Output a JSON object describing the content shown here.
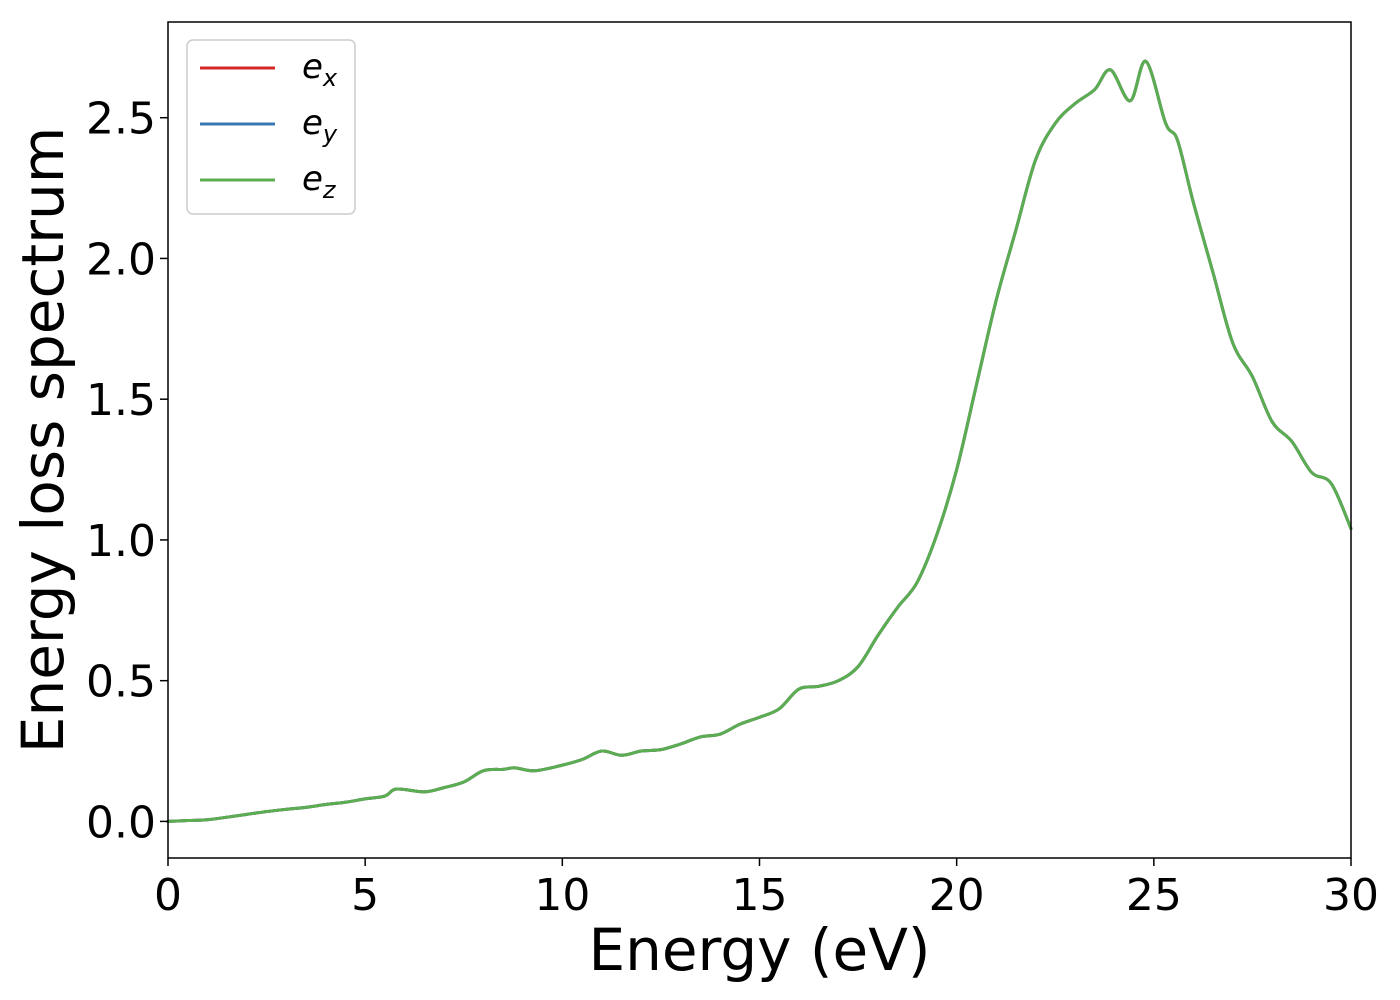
{
  "chart_data": {
    "type": "line",
    "xlabel": "Energy (eV)",
    "ylabel": "Energy loss spectrum",
    "xlim": [
      0,
      30
    ],
    "ylim": [
      -0.13,
      2.84
    ],
    "x_ticks": [
      0,
      5,
      10,
      15,
      20,
      25,
      30
    ],
    "x_tick_labels": [
      "0",
      "5",
      "10",
      "15",
      "20",
      "25",
      "30"
    ],
    "y_ticks": [
      0.0,
      0.5,
      1.0,
      1.5,
      2.0,
      2.5
    ],
    "y_tick_labels": [
      "0.0",
      "0.5",
      "1.0",
      "1.5",
      "2.0",
      "2.5"
    ],
    "grid": false,
    "legend": {
      "placement": "top-left",
      "entries": [
        {
          "base": "e",
          "sub": "x",
          "color": "#d62728"
        },
        {
          "base": "e",
          "sub": "y",
          "color": "#3a78b4"
        },
        {
          "base": "e",
          "sub": "z",
          "color": "#5aad50"
        }
      ]
    },
    "x": [
      0,
      0.5,
      1,
      1.5,
      2,
      2.5,
      3,
      3.5,
      4,
      4.5,
      5,
      5.5,
      5.8,
      6.5,
      7,
      7.5,
      8,
      8.5,
      8.8,
      9.3,
      10,
      10.5,
      11,
      11.5,
      12,
      12.5,
      13,
      13.5,
      14,
      14.5,
      15,
      15.5,
      16,
      16.5,
      17,
      17.5,
      18,
      18.5,
      19,
      19.5,
      20,
      20.5,
      21,
      21.5,
      22,
      22.5,
      23,
      23.5,
      23.9,
      24.4,
      24.8,
      25.3,
      25.6,
      26,
      26.5,
      27,
      27.5,
      28,
      28.5,
      29,
      29.5,
      30
    ],
    "series": [
      {
        "name": "e_x",
        "color": "#d62728",
        "values": [
          0.0,
          0.003,
          0.006,
          0.015,
          0.025,
          0.035,
          0.043,
          0.05,
          0.06,
          0.068,
          0.08,
          0.09,
          0.115,
          0.105,
          0.12,
          0.14,
          0.18,
          0.185,
          0.19,
          0.18,
          0.2,
          0.22,
          0.25,
          0.235,
          0.25,
          0.255,
          0.275,
          0.3,
          0.31,
          0.345,
          0.37,
          0.4,
          0.47,
          0.48,
          0.5,
          0.55,
          0.66,
          0.76,
          0.85,
          1.02,
          1.25,
          1.55,
          1.85,
          2.1,
          2.35,
          2.48,
          2.55,
          2.6,
          2.67,
          2.56,
          2.7,
          2.48,
          2.42,
          2.2,
          1.95,
          1.7,
          1.58,
          1.42,
          1.35,
          1.24,
          1.2,
          1.04
        ]
      },
      {
        "name": "e_y",
        "color": "#3a78b4",
        "values": [
          0.0,
          0.003,
          0.006,
          0.015,
          0.025,
          0.035,
          0.043,
          0.05,
          0.06,
          0.068,
          0.08,
          0.09,
          0.115,
          0.105,
          0.12,
          0.14,
          0.18,
          0.185,
          0.19,
          0.18,
          0.2,
          0.22,
          0.25,
          0.235,
          0.25,
          0.255,
          0.275,
          0.3,
          0.31,
          0.345,
          0.37,
          0.4,
          0.47,
          0.48,
          0.5,
          0.55,
          0.66,
          0.76,
          0.85,
          1.02,
          1.25,
          1.55,
          1.85,
          2.1,
          2.35,
          2.48,
          2.55,
          2.6,
          2.67,
          2.56,
          2.7,
          2.48,
          2.42,
          2.2,
          1.95,
          1.7,
          1.58,
          1.42,
          1.35,
          1.24,
          1.2,
          1.04
        ]
      },
      {
        "name": "e_z",
        "color": "#5aad50",
        "values": [
          0.0,
          0.003,
          0.006,
          0.015,
          0.025,
          0.035,
          0.043,
          0.05,
          0.06,
          0.068,
          0.08,
          0.09,
          0.115,
          0.105,
          0.12,
          0.14,
          0.18,
          0.185,
          0.19,
          0.18,
          0.2,
          0.22,
          0.25,
          0.235,
          0.25,
          0.255,
          0.275,
          0.3,
          0.31,
          0.345,
          0.37,
          0.4,
          0.47,
          0.48,
          0.5,
          0.55,
          0.66,
          0.76,
          0.85,
          1.02,
          1.25,
          1.55,
          1.85,
          2.1,
          2.35,
          2.48,
          2.55,
          2.6,
          2.67,
          2.56,
          2.7,
          2.48,
          2.42,
          2.2,
          1.95,
          1.7,
          1.58,
          1.42,
          1.35,
          1.24,
          1.2,
          1.04
        ]
      }
    ]
  }
}
